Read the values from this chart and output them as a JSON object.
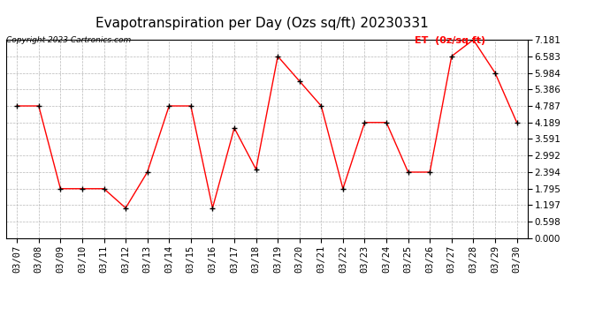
{
  "title": "Evapotranspiration per Day (Ozs sq/ft) 20230331",
  "copyright": "Copyright 2023 Cartronics.com",
  "legend_label": "ET  (0z/sq ft)",
  "dates": [
    "03/07",
    "03/08",
    "03/09",
    "03/10",
    "03/11",
    "03/12",
    "03/13",
    "03/14",
    "03/15",
    "03/16",
    "03/17",
    "03/18",
    "03/19",
    "03/20",
    "03/21",
    "03/22",
    "03/23",
    "03/24",
    "03/25",
    "03/26",
    "03/27",
    "03/28",
    "03/29",
    "03/30"
  ],
  "values": [
    4.787,
    4.787,
    1.795,
    1.795,
    1.795,
    1.097,
    2.394,
    4.787,
    4.787,
    1.097,
    3.99,
    2.494,
    6.583,
    5.684,
    4.787,
    1.795,
    4.189,
    4.189,
    2.394,
    2.394,
    6.583,
    7.181,
    5.984,
    4.189
  ],
  "ylim": [
    0.0,
    7.181
  ],
  "yticks": [
    0.0,
    0.598,
    1.197,
    1.795,
    2.394,
    2.992,
    3.591,
    4.189,
    4.787,
    5.386,
    5.984,
    6.583,
    7.181
  ],
  "line_color": "red",
  "marker_color": "black",
  "background_color": "#ffffff",
  "grid_color": "#b0b0b0",
  "title_fontsize": 11,
  "tick_fontsize": 7.5,
  "copyright_fontsize": 6.5,
  "legend_fontsize": 8,
  "legend_color": "red"
}
